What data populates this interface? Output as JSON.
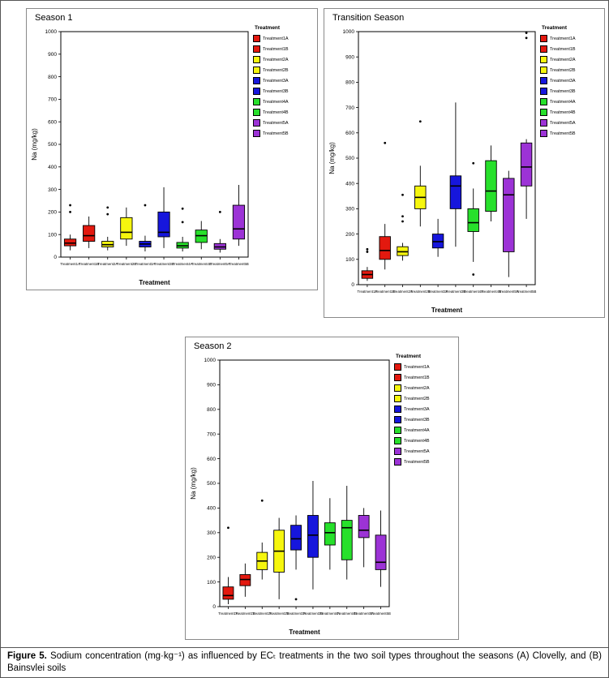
{
  "figure": {
    "caption_label": "Figure 5.",
    "caption_text": " Sodium concentration (mg·kg⁻¹) as influenced by ECₜ treatments in the two soil types throughout the seasons (A) Clovelly, and (B) Bainsvlei soils"
  },
  "legend": {
    "title": "Treatment",
    "entries": [
      {
        "label": "Treatment1A",
        "color": "#e3190f"
      },
      {
        "label": "Treatment1B",
        "color": "#e3190f"
      },
      {
        "label": "Treatment2A",
        "color": "#f6f60e"
      },
      {
        "label": "Treatment2B",
        "color": "#f6f60e"
      },
      {
        "label": "Treatment3A",
        "color": "#1616dc"
      },
      {
        "label": "Treatment3B",
        "color": "#1616dc"
      },
      {
        "label": "Treatment4A",
        "color": "#27e02b"
      },
      {
        "label": "Treatment4B",
        "color": "#27e02b"
      },
      {
        "label": "Treatment5A",
        "color": "#9c33d6"
      },
      {
        "label": "Treatment5B",
        "color": "#9c33d6"
      }
    ]
  },
  "chart_data": [
    {
      "type": "box",
      "title": "Season 1",
      "xlabel": "Treatment",
      "ylabel": "Na (mg/kg)",
      "ylim": [
        0,
        1000
      ],
      "ytick_step": 100,
      "grid": false,
      "legend_position": "right",
      "categories": [
        "Treatment1A",
        "Treatment1B",
        "Treatment2A",
        "Treatment2B",
        "Treatment3A",
        "Treatment3B",
        "Treatment4A",
        "Treatment4B",
        "Treatment5A",
        "Treatment5B"
      ],
      "boxes": [
        {
          "low": 30,
          "q1": 50,
          "median": 62,
          "q3": 80,
          "high": 100,
          "outliers": [
            200,
            230
          ]
        },
        {
          "low": 40,
          "q1": 70,
          "median": 95,
          "q3": 140,
          "high": 180,
          "outliers": []
        },
        {
          "low": 30,
          "q1": 45,
          "median": 55,
          "q3": 70,
          "high": 90,
          "outliers": [
            190,
            220
          ]
        },
        {
          "low": 50,
          "q1": 80,
          "median": 110,
          "q3": 175,
          "high": 220,
          "outliers": []
        },
        {
          "low": 25,
          "q1": 45,
          "median": 58,
          "q3": 70,
          "high": 95,
          "outliers": [
            230
          ]
        },
        {
          "low": 40,
          "q1": 90,
          "median": 110,
          "q3": 200,
          "high": 310,
          "outliers": []
        },
        {
          "low": 25,
          "q1": 40,
          "median": 50,
          "q3": 65,
          "high": 90,
          "outliers": [
            155,
            215
          ]
        },
        {
          "low": 35,
          "q1": 65,
          "median": 95,
          "q3": 120,
          "high": 160,
          "outliers": []
        },
        {
          "low": 20,
          "q1": 35,
          "median": 45,
          "q3": 60,
          "high": 80,
          "outliers": [
            200
          ]
        },
        {
          "low": 50,
          "q1": 80,
          "median": 125,
          "q3": 230,
          "high": 320,
          "outliers": []
        }
      ]
    },
    {
      "type": "box",
      "title": "Transition Season",
      "xlabel": "Treatment",
      "ylabel": "Na (mg/kg)",
      "ylim": [
        0,
        1000
      ],
      "ytick_step": 100,
      "grid": false,
      "legend_position": "right",
      "categories": [
        "Treatment1A",
        "Treatment1B",
        "Treatment2A",
        "Treatment2B",
        "Treatment3A",
        "Treatment3B",
        "Treatment4A",
        "Treatment4B",
        "Treatment5A",
        "Treatment5B"
      ],
      "boxes": [
        {
          "low": 15,
          "q1": 25,
          "median": 40,
          "q3": 55,
          "high": 70,
          "outliers": [
            130,
            140
          ]
        },
        {
          "low": 60,
          "q1": 100,
          "median": 135,
          "q3": 190,
          "high": 240,
          "outliers": [
            560
          ]
        },
        {
          "low": 95,
          "q1": 115,
          "median": 130,
          "q3": 150,
          "high": 165,
          "outliers": [
            250,
            270,
            355
          ]
        },
        {
          "low": 230,
          "q1": 300,
          "median": 345,
          "q3": 390,
          "high": 470,
          "outliers": [
            645
          ]
        },
        {
          "low": 110,
          "q1": 145,
          "median": 170,
          "q3": 200,
          "high": 260,
          "outliers": []
        },
        {
          "low": 150,
          "q1": 300,
          "median": 390,
          "q3": 430,
          "high": 720,
          "outliers": []
        },
        {
          "low": 90,
          "q1": 210,
          "median": 245,
          "q3": 300,
          "high": 380,
          "outliers": [
            40,
            480
          ]
        },
        {
          "low": 250,
          "q1": 290,
          "median": 370,
          "q3": 490,
          "high": 550,
          "outliers": []
        },
        {
          "low": 30,
          "q1": 130,
          "median": 355,
          "q3": 420,
          "high": 450,
          "outliers": []
        },
        {
          "low": 260,
          "q1": 390,
          "median": 465,
          "q3": 560,
          "high": 575,
          "outliers": [
            975,
            995
          ]
        }
      ]
    },
    {
      "type": "box",
      "title": "Season 2",
      "xlabel": "Treatment",
      "ylabel": "Na (mg/kg)",
      "ylim": [
        0,
        1000
      ],
      "ytick_step": 100,
      "grid": false,
      "legend_position": "right",
      "categories": [
        "Treatment1A",
        "Treatment1B",
        "Treatment2A",
        "Treatment2B",
        "Treatment3A",
        "Treatment3B",
        "Treatment4A",
        "Treatment4B",
        "Treatment5A",
        "Treatment5B"
      ],
      "boxes": [
        {
          "low": 10,
          "q1": 30,
          "median": 45,
          "q3": 80,
          "high": 120,
          "outliers": [
            320
          ]
        },
        {
          "low": 40,
          "q1": 85,
          "median": 110,
          "q3": 130,
          "high": 175,
          "outliers": []
        },
        {
          "low": 110,
          "q1": 150,
          "median": 185,
          "q3": 220,
          "high": 260,
          "outliers": [
            430
          ]
        },
        {
          "low": 30,
          "q1": 140,
          "median": 225,
          "q3": 310,
          "high": 360,
          "outliers": []
        },
        {
          "low": 150,
          "q1": 230,
          "median": 275,
          "q3": 330,
          "high": 370,
          "outliers": [
            30
          ]
        },
        {
          "low": 70,
          "q1": 200,
          "median": 290,
          "q3": 370,
          "high": 510,
          "outliers": []
        },
        {
          "low": 150,
          "q1": 250,
          "median": 300,
          "q3": 340,
          "high": 440,
          "outliers": []
        },
        {
          "low": 110,
          "q1": 190,
          "median": 320,
          "q3": 350,
          "high": 490,
          "outliers": []
        },
        {
          "low": 160,
          "q1": 280,
          "median": 310,
          "q3": 370,
          "high": 400,
          "outliers": []
        },
        {
          "low": 80,
          "q1": 150,
          "median": 180,
          "q3": 290,
          "high": 390,
          "outliers": []
        }
      ]
    }
  ]
}
